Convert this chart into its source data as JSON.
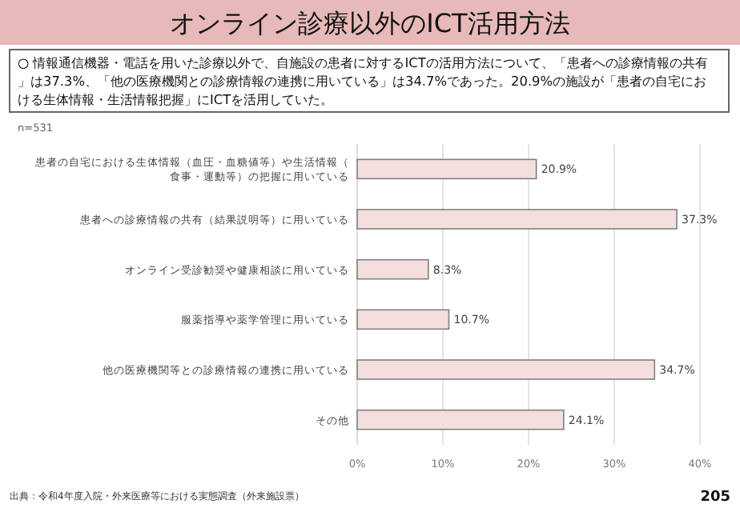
{
  "chart_data": {
    "type": "bar",
    "orientation": "horizontal",
    "title": "オンライン診療以外のICT活用方法",
    "categories": [
      "患者の自宅における生体情報（血圧・血糖値等）や生活情報（食事・運動等）の把握に用いている",
      "患者への診療情報の共有（結果説明等）に用いている",
      "オンライン受診勧奨や健康相談に用いている",
      "服薬指導や薬学管理に用いている",
      "他の医療機関等との診療情報の連携に用いている",
      "その他"
    ],
    "values": [
      20.9,
      37.3,
      8.3,
      10.7,
      34.7,
      24.1
    ],
    "color": "#f4dede",
    "value_labels": [
      "20.9%",
      "37.3%",
      "8.3%",
      "10.7%",
      "34.7%",
      "24.1%"
    ],
    "xlim": [
      0,
      40
    ],
    "xticks": [
      {
        "value": 0,
        "label": "0%"
      },
      {
        "value": 10,
        "label": "10%"
      },
      {
        "value": 20,
        "label": "20%"
      },
      {
        "value": 30,
        "label": "30%"
      },
      {
        "value": 40,
        "label": "40%"
      }
    ],
    "grid": "x",
    "annotations": [
      "○ 情報通信機器・電話を用いた診療以外で、自施設の患者に対するICTの活用方法について、「患者への診療情報の共有」は37.3%、「他の医療機関との診療情報の連携に用いている」は34.7%であった。20.9%の施設が「患者の自宅における生体情報・生活情報把握」にICTを活用していた。",
      "n=531",
      "出典：令和4年度入院・外来医療等における実態調査（外来施設票）",
      "205"
    ]
  }
}
